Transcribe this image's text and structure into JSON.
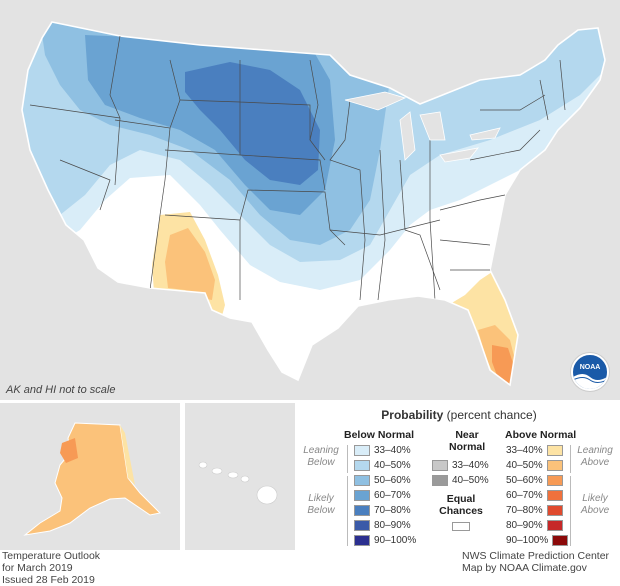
{
  "map": {
    "scale_note": "AK and HI not to scale",
    "logo_text": "NOAA",
    "colors": {
      "background": "#e3e3e3",
      "equal_chances": "#ffffff",
      "below_33_40": "#d9edf8",
      "below_40_50": "#b4d8ee",
      "below_50_60": "#8fc0e2",
      "below_60_70": "#6aa3d2",
      "below_70_80": "#4a7fbf",
      "above_33_40": "#fde3a4",
      "above_40_50": "#fbc27a",
      "above_50_60": "#f79a55"
    }
  },
  "legend": {
    "title_bold": "Probability",
    "title_rest": "(percent chance)",
    "below_header": "Below Normal",
    "near_header_1": "Near",
    "near_header_2": "Normal",
    "above_header": "Above Normal",
    "leaning_below_1": "Leaning",
    "leaning_below_2": "Below",
    "likely_below_1": "Likely",
    "likely_below_2": "Below",
    "leaning_above_1": "Leaning",
    "leaning_above_2": "Above",
    "likely_above_1": "Likely",
    "likely_above_2": "Above",
    "equal_1": "Equal",
    "equal_2": "Chances",
    "below": [
      {
        "label": "33–40%",
        "color": "#d9edf8"
      },
      {
        "label": "40–50%",
        "color": "#b4d8ee"
      },
      {
        "label": "50–60%",
        "color": "#8fc0e2"
      },
      {
        "label": "60–70%",
        "color": "#6aa3d2"
      },
      {
        "label": "70–80%",
        "color": "#4a7fbf"
      },
      {
        "label": "80–90%",
        "color": "#3a5aa8"
      },
      {
        "label": "90–100%",
        "color": "#2b2f8f"
      }
    ],
    "near": [
      {
        "label": "33–40%",
        "color": "#c8c8c8"
      },
      {
        "label": "40–50%",
        "color": "#9a9a9a"
      }
    ],
    "above": [
      {
        "label": "33–40%",
        "color": "#fde3a4"
      },
      {
        "label": "40–50%",
        "color": "#fbc27a"
      },
      {
        "label": "50–60%",
        "color": "#f79a55"
      },
      {
        "label": "60–70%",
        "color": "#f0713c"
      },
      {
        "label": "70–80%",
        "color": "#e04a2e"
      },
      {
        "label": "80–90%",
        "color": "#c62828"
      },
      {
        "label": "90–100%",
        "color": "#8b0a0a"
      }
    ]
  },
  "footer": {
    "left_1": "Temperature Outlook",
    "left_2": "for March 2019",
    "left_3": "Issued 28 Feb 2019",
    "right_1": "NWS Climate Prediction Center",
    "right_2": "Map by NOAA Climate.gov"
  }
}
